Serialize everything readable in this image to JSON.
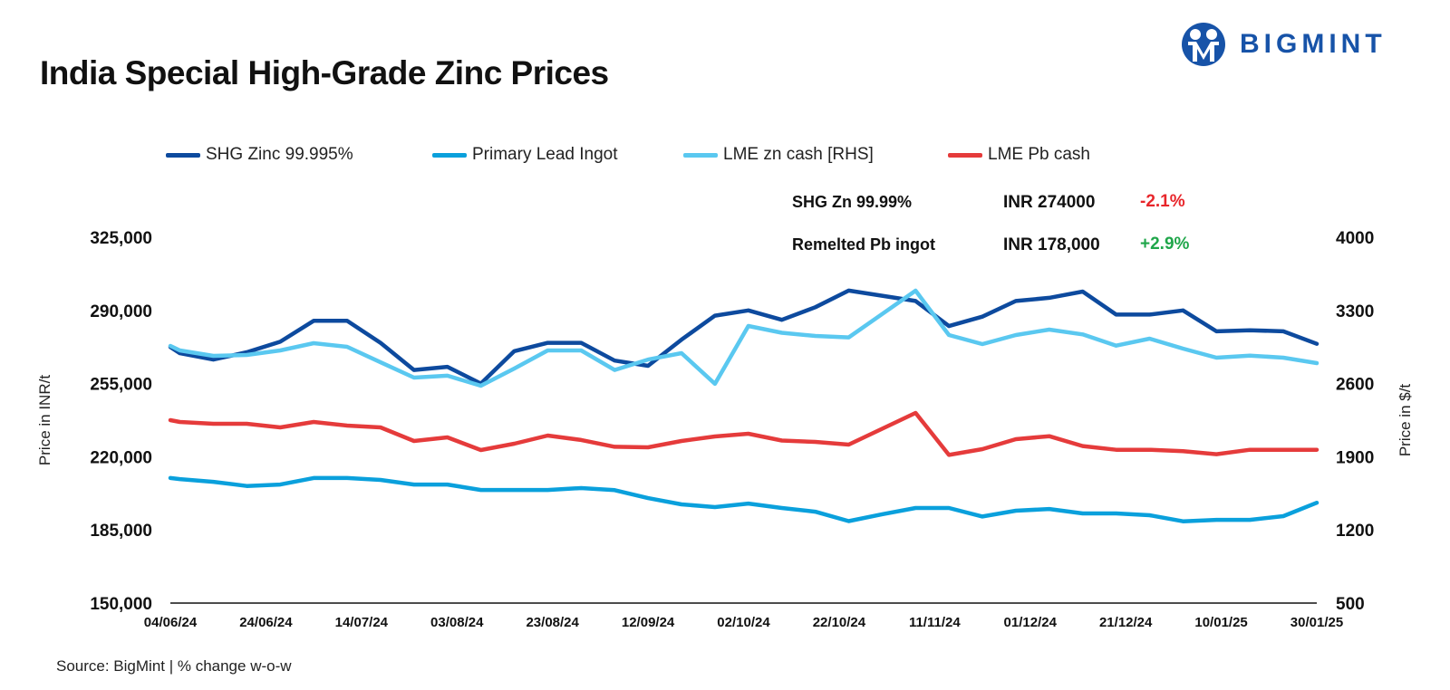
{
  "header": {
    "title": "India Special High-Grade Zinc Prices",
    "logo_text": "BIGMINT"
  },
  "summary": [
    {
      "label": "SHG Zn 99.99%",
      "price": "INR 274000",
      "change": "-2.1%",
      "change_color": "#e8262b"
    },
    {
      "label": "Remelted Pb ingot",
      "price": "INR 178,000",
      "change": "+2.9%",
      "change_color": "#1fa64a"
    }
  ],
  "footer": {
    "source": "Source: BigMint | % change w-o-w"
  },
  "chart_data": {
    "type": "line",
    "title": "India Special High-Grade Zinc Prices",
    "ylabel": "Price in INR/t",
    "y2label": "Price in $/t",
    "ylim": [
      150000,
      325000
    ],
    "y2lim": [
      500,
      4000
    ],
    "yticks": [
      "325,000",
      "290,000",
      "255,000",
      "220,000",
      "185,000",
      "150,000"
    ],
    "y2ticks": [
      "4000",
      "3300",
      "2600",
      "1900",
      "1200",
      "500"
    ],
    "xticks": [
      "04/06/24",
      "24/06/24",
      "14/07/24",
      "03/08/24",
      "23/08/24",
      "12/09/24",
      "02/10/24",
      "22/10/24",
      "11/11/24",
      "01/12/24",
      "21/12/24",
      "10/01/25",
      "30/01/25"
    ],
    "grid": false,
    "legend_position": "top",
    "x": [
      "04/06/24",
      "06/06/24",
      "13/06/24",
      "20/06/24",
      "27/06/24",
      "04/07/24",
      "11/07/24",
      "18/07/24",
      "25/07/24",
      "01/08/24",
      "08/08/24",
      "15/08/24",
      "22/08/24",
      "29/08/24",
      "05/09/24",
      "12/09/24",
      "19/09/24",
      "26/09/24",
      "03/10/24",
      "10/10/24",
      "17/10/24",
      "24/10/24",
      "31/10/24",
      "07/11/24",
      "14/11/24",
      "21/11/24",
      "28/11/24",
      "05/12/24",
      "12/12/24",
      "19/12/24",
      "26/12/24",
      "02/01/25",
      "09/01/25",
      "16/01/25",
      "23/01/25",
      "30/01/25"
    ],
    "series": [
      {
        "name": "SHG Zinc 99.995%",
        "axis": "left",
        "color": "#0d4a9e",
        "values": [
          272500,
          269500,
          266500,
          270000,
          275000,
          285000,
          285000,
          274500,
          261500,
          263000,
          255000,
          270500,
          274500,
          274500,
          266000,
          263500,
          276000,
          287500,
          290000,
          285500,
          291500,
          299500,
          297000,
          294500,
          282500,
          287000,
          294500,
          296000,
          299000,
          288000,
          288000,
          290000,
          280000,
          280500,
          280000,
          274000
        ]
      },
      {
        "name": "Primary Lead Ingot",
        "axis": "left",
        "color": "#0aa0dc",
        "values": [
          209800,
          209300,
          208000,
          206000,
          206700,
          209800,
          209800,
          208900,
          206700,
          206700,
          204100,
          204100,
          204100,
          205000,
          204000,
          200200,
          197200,
          195900,
          197600,
          195500,
          193700,
          189200,
          192500,
          195500,
          195500,
          191400,
          194200,
          195000,
          192900,
          192900,
          192000,
          189100,
          189800,
          189800,
          191600,
          198000
        ]
      },
      {
        "name": "LME zn cash [RHS]",
        "axis": "right",
        "color": "#5ac8f0",
        "values": [
          2960,
          2917,
          2865,
          2874,
          2917,
          2986,
          2952,
          2804,
          2657,
          2675,
          2579,
          2744,
          2917,
          2917,
          2730,
          2830,
          2891,
          2597,
          3151,
          3086,
          3056,
          3042,
          3265,
          3489,
          3064,
          2978,
          3064,
          3116,
          3070,
          2963,
          3030,
          2934,
          2848,
          2868,
          2848,
          2796
        ]
      },
      {
        "name": "LME Pb cash",
        "axis": "right",
        "color": "#e53b3b",
        "values": [
          2250,
          2233,
          2215,
          2215,
          2181,
          2233,
          2198,
          2181,
          2051,
          2085,
          1964,
          2025,
          2103,
          2060,
          1995,
          1990,
          2051,
          2094,
          2120,
          2055,
          2042,
          2016,
          2168,
          2319,
          1917,
          1973,
          2068,
          2097,
          2002,
          1967,
          1967,
          1953,
          1924,
          1967,
          1967,
          1967
        ]
      }
    ]
  }
}
